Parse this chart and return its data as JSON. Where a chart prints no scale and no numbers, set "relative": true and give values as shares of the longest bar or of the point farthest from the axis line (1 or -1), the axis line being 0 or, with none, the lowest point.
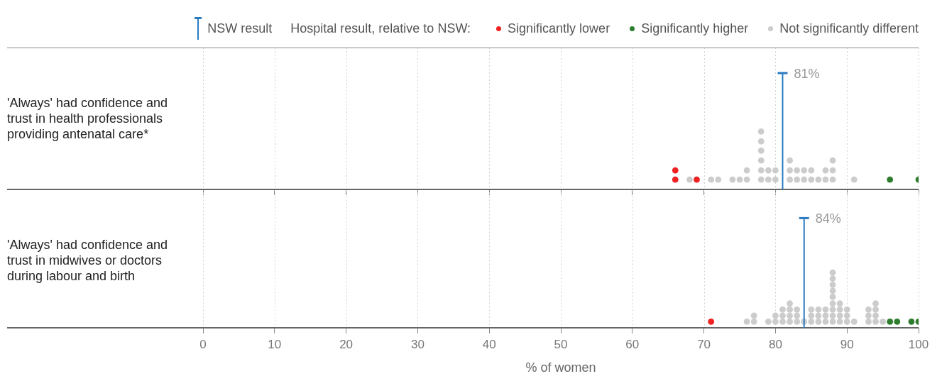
{
  "chart_data": [
    {
      "type": "scatter",
      "ylabel": "'Always' had confidence and trust in health professionals providing antenatal care*",
      "legend_title": "Hospital result, relative to NSW:",
      "legend": "top right",
      "annotations": [
        "NSW result"
      ],
      "xlim": [
        0,
        100
      ],
      "xticks": [
        0,
        10,
        20,
        30,
        40,
        50,
        60,
        70,
        80,
        90,
        100
      ],
      "relative": true,
      "tick_labels": false,
      "grid": "x",
      "marker": "circle",
      "ref_lines": [
        {
          "axis": "x",
          "value": 81,
          "label": "81%",
          "color": "#2b7bc0"
        }
      ],
      "series": [
        {
          "name": "Significantly lower",
          "color": "#ee2222",
          "x": [
            66,
            66,
            69
          ],
          "values": [
            0.17,
            0.33,
            0.17
          ]
        },
        {
          "name": "Significantly higher",
          "color": "#2e7d2e",
          "x": [
            96,
            100
          ],
          "values": [
            0.17,
            0.17
          ]
        },
        {
          "name": "Not significantly different",
          "color": "#cccccc",
          "x": [
            68,
            71,
            72,
            74,
            75,
            76,
            76,
            78,
            78,
            78,
            78,
            78,
            78,
            79,
            79,
            80,
            80,
            82,
            82,
            82,
            83,
            83,
            84,
            84,
            85,
            85,
            86,
            87,
            87,
            88,
            88,
            88,
            91
          ],
          "values": [
            0.17,
            0.17,
            0.17,
            0.17,
            0.17,
            0.17,
            0.33,
            0.17,
            0.33,
            0.5,
            0.67,
            0.83,
            1,
            0.17,
            0.33,
            0.17,
            0.33,
            0.17,
            0.33,
            0.5,
            0.17,
            0.33,
            0.17,
            0.33,
            0.17,
            0.33,
            0.17,
            0.17,
            0.33,
            0.17,
            0.33,
            0.5,
            0.17
          ]
        }
      ]
    },
    {
      "type": "scatter",
      "ylabel": "'Always' had confidence and trust in midwives or doctors during labour and birth",
      "xlabel": "% of women",
      "xlim": [
        0,
        100
      ],
      "xticks": [
        0,
        10,
        20,
        30,
        40,
        50,
        60,
        70,
        80,
        90,
        100
      ],
      "relative": true,
      "tick_labels": "x",
      "grid": "x",
      "marker": "circle",
      "ref_lines": [
        {
          "axis": "x",
          "value": 84,
          "label": "84%",
          "color": "#2b7bc0"
        }
      ],
      "series": [
        {
          "color": "#ee2222",
          "x": [
            71
          ],
          "values": [
            0.11
          ]
        },
        {
          "color": "#2e7d2e",
          "x": [
            96,
            97,
            99,
            100
          ],
          "values": [
            0.11,
            0.11,
            0.11,
            0.11
          ]
        },
        {
          "color": "#cccccc",
          "x": [
            76,
            77,
            77,
            79,
            80,
            80,
            81,
            81,
            81,
            82,
            82,
            82,
            82,
            83,
            83,
            83,
            84,
            85,
            85,
            85,
            86,
            86,
            86,
            87,
            87,
            87,
            88,
            88,
            88,
            88,
            88,
            88,
            88,
            88,
            88,
            89,
            89,
            89,
            89,
            90,
            90,
            90,
            91,
            93,
            93,
            93,
            94,
            94,
            94,
            94,
            95
          ],
          "values": [
            0.11,
            0.11,
            0.22,
            0.11,
            0.11,
            0.22,
            0.11,
            0.22,
            0.33,
            0.11,
            0.22,
            0.33,
            0.44,
            0.11,
            0.22,
            0.33,
            0.11,
            0.11,
            0.22,
            0.33,
            0.11,
            0.22,
            0.33,
            0.11,
            0.22,
            0.33,
            0.11,
            0.22,
            0.33,
            0.44,
            0.56,
            0.67,
            0.78,
            0.89,
            1,
            0.11,
            0.22,
            0.33,
            0.44,
            0.11,
            0.22,
            0.33,
            0.11,
            0.11,
            0.22,
            0.33,
            0.11,
            0.22,
            0.33,
            0.44,
            0.11
          ]
        }
      ]
    }
  ]
}
